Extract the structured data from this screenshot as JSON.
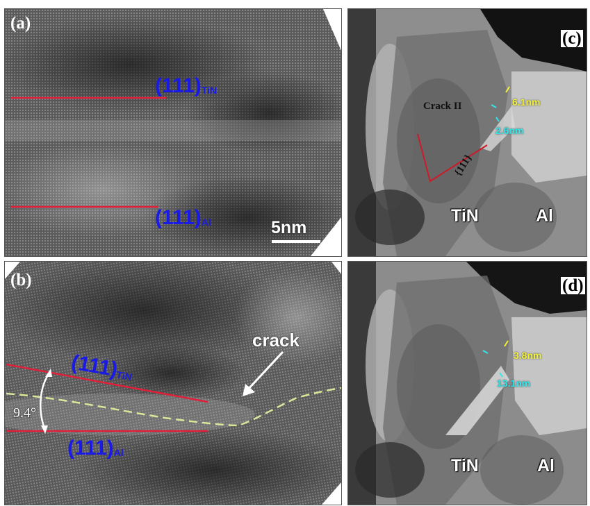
{
  "figure": {
    "panel_a": {
      "label": "(a)",
      "plane_top": {
        "index": "(111)",
        "phase": "TiN"
      },
      "plane_bottom": {
        "index": "(111)",
        "phase": "Al"
      },
      "scale_bar": "5nm"
    },
    "panel_b": {
      "label": "(b)",
      "plane_top": {
        "index": "(111)",
        "phase": "TiN"
      },
      "plane_bottom": {
        "index": "(111)",
        "phase": "Al"
      },
      "angle": "9.4°",
      "crack_label": "crack"
    },
    "panel_c": {
      "label": "(c)",
      "crack_label": "Crack II",
      "facet_label": "{111}",
      "measure_1": "6.1nm",
      "measure_2": "2.6nm",
      "material_left": "TiN",
      "material_right": "Al"
    },
    "panel_d": {
      "label": "(d)",
      "measure_1": "3.8nm",
      "measure_2": "13.1nm",
      "material_left": "TiN",
      "material_right": "Al"
    }
  },
  "colors": {
    "plane_text": "#1a1ae6",
    "red_line": "#e0203a",
    "interface_dash": "#d8e89a",
    "measure_yellow": "#f2f23a",
    "measure_cyan": "#2ee8ee"
  }
}
